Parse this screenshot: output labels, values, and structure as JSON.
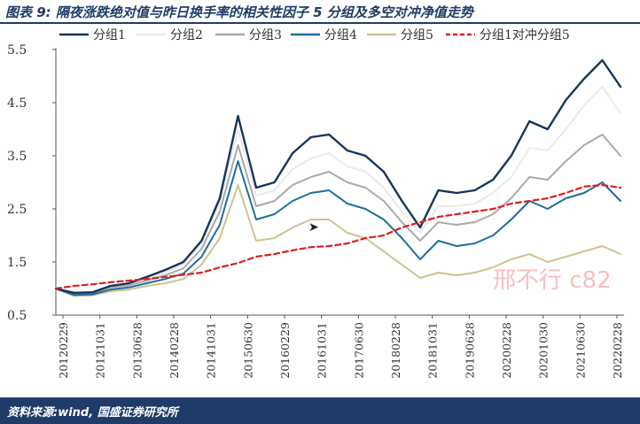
{
  "header": {
    "title": "图表 9:  隔夜涨跌绝对值与昨日换手率的相关性因子 5 分组及多空对冲净值走势"
  },
  "footer": {
    "source": "资料来源:wind, 国盛证券研究所"
  },
  "watermark": "邢不行 c82",
  "colors": {
    "g1": "#15365a",
    "g2": "#eaeaea",
    "g3": "#a9a9a9",
    "g4": "#1d6e9c",
    "g5": "#cfc291",
    "ls": "#dd1f1f",
    "header": "#1f3c68",
    "axis": "#555555"
  },
  "chart_data": {
    "type": "line",
    "title": "隔夜涨跌绝对值与昨日换手率的相关性因子 5 分组及多空对冲净值走势",
    "ylim": [
      0.5,
      5.5
    ],
    "yticks": [
      "0.5",
      "1.5",
      "2.5",
      "3.5",
      "4.5",
      "5.5"
    ],
    "xticks": [
      "20120229",
      "20121031",
      "20130628",
      "20140228",
      "20141031",
      "20150630",
      "20160229",
      "20161031",
      "20170630",
      "20180228",
      "20181031",
      "20190628",
      "20200228",
      "20201030",
      "20210630",
      "20220228"
    ],
    "x": [
      "2012-02-29",
      "2012-06-30",
      "2012-10-31",
      "2013-02-28",
      "2013-06-28",
      "2013-10-31",
      "2014-02-28",
      "2014-06-30",
      "2014-10-31",
      "2015-02-28",
      "2015-06-30",
      "2015-10-31",
      "2016-02-29",
      "2016-06-30",
      "2016-10-31",
      "2017-02-28",
      "2017-06-30",
      "2017-10-31",
      "2018-02-28",
      "2018-06-30",
      "2018-10-31",
      "2019-02-28",
      "2019-06-28",
      "2019-10-31",
      "2020-02-28",
      "2020-06-30",
      "2020-10-30",
      "2021-02-26",
      "2021-06-30",
      "2021-10-29",
      "2022-02-28",
      "2022-03-31"
    ],
    "legend_position": "top",
    "series": [
      {
        "name": "分组1",
        "style": "solid",
        "values": [
          1.0,
          0.92,
          0.93,
          1.05,
          1.1,
          1.22,
          1.35,
          1.5,
          1.9,
          2.7,
          4.25,
          2.9,
          3.0,
          3.55,
          3.85,
          3.9,
          3.6,
          3.5,
          3.2,
          2.65,
          2.15,
          2.85,
          2.8,
          2.85,
          3.05,
          3.5,
          4.15,
          4.0,
          4.55,
          4.95,
          5.3,
          4.8
        ]
      },
      {
        "name": "分组2",
        "style": "solid",
        "values": [
          1.0,
          0.91,
          0.92,
          1.03,
          1.08,
          1.18,
          1.3,
          1.45,
          1.85,
          2.6,
          4.0,
          2.75,
          2.85,
          3.25,
          3.45,
          3.55,
          3.3,
          3.2,
          2.9,
          2.45,
          2.05,
          2.55,
          2.55,
          2.6,
          2.8,
          3.1,
          3.65,
          3.6,
          4.0,
          4.45,
          4.8,
          4.3
        ]
      },
      {
        "name": "分组3",
        "style": "solid",
        "values": [
          1.0,
          0.9,
          0.91,
          1.02,
          1.06,
          1.15,
          1.25,
          1.38,
          1.75,
          2.45,
          3.7,
          2.55,
          2.65,
          2.95,
          3.1,
          3.2,
          3.0,
          2.9,
          2.65,
          2.25,
          1.9,
          2.25,
          2.2,
          2.25,
          2.4,
          2.7,
          3.1,
          3.05,
          3.4,
          3.7,
          3.9,
          3.5
        ]
      },
      {
        "name": "分组4",
        "style": "solid",
        "values": [
          1.0,
          0.88,
          0.89,
          0.98,
          1.02,
          1.1,
          1.18,
          1.28,
          1.6,
          2.2,
          3.4,
          2.3,
          2.4,
          2.65,
          2.8,
          2.85,
          2.6,
          2.5,
          2.3,
          1.95,
          1.55,
          1.9,
          1.8,
          1.85,
          2.0,
          2.3,
          2.65,
          2.5,
          2.7,
          2.8,
          3.0,
          2.65
        ]
      },
      {
        "name": "分组5",
        "style": "solid",
        "values": [
          1.0,
          0.86,
          0.87,
          0.95,
          0.98,
          1.05,
          1.1,
          1.18,
          1.45,
          1.95,
          2.95,
          1.9,
          1.95,
          2.15,
          2.3,
          2.3,
          2.05,
          1.95,
          1.7,
          1.45,
          1.2,
          1.3,
          1.25,
          1.3,
          1.4,
          1.55,
          1.65,
          1.5,
          1.6,
          1.7,
          1.8,
          1.65
        ]
      },
      {
        "name": "分组1对冲分组5",
        "style": "dashed",
        "values": [
          1.0,
          1.05,
          1.08,
          1.12,
          1.15,
          1.18,
          1.22,
          1.26,
          1.3,
          1.4,
          1.48,
          1.6,
          1.65,
          1.72,
          1.78,
          1.8,
          1.85,
          1.95,
          2.0,
          2.15,
          2.25,
          2.35,
          2.4,
          2.45,
          2.5,
          2.6,
          2.65,
          2.7,
          2.8,
          2.92,
          2.95,
          2.9
        ]
      }
    ]
  }
}
